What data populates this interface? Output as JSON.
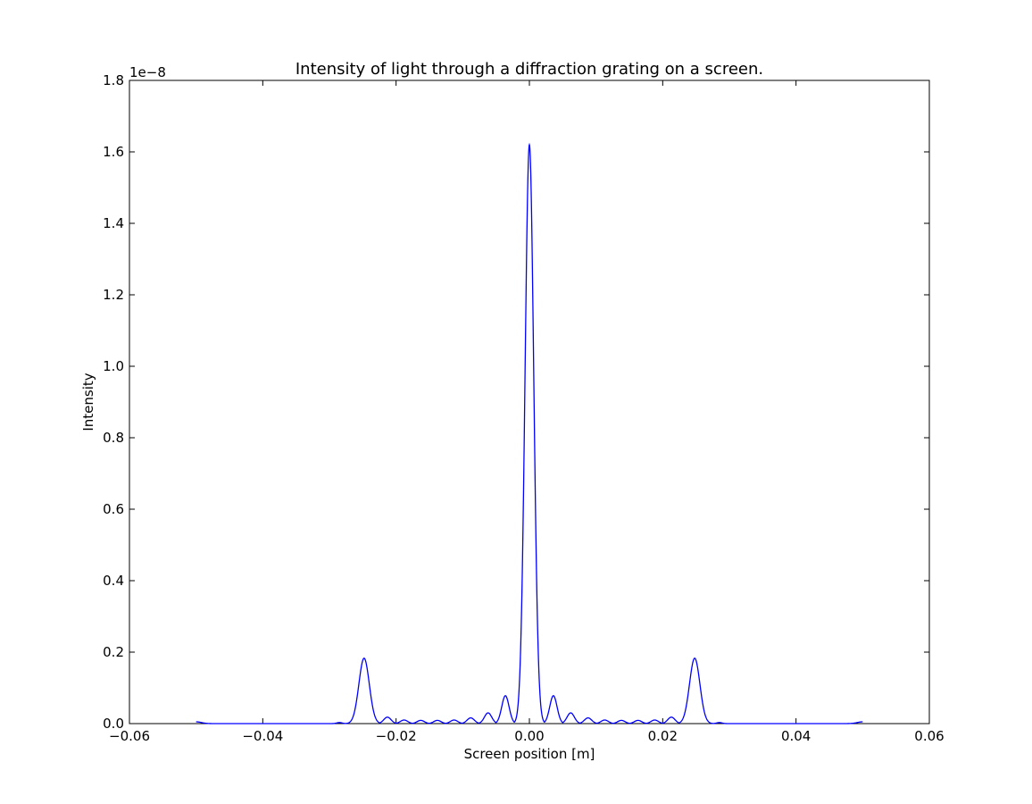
{
  "chart_data": {
    "type": "line",
    "title": "Intensity of light through a diffraction grating on a screen.",
    "xlabel": "Screen position [m]",
    "ylabel": "Intensity",
    "y_offset_label": "1e−8",
    "xlim": [
      -0.06,
      0.06
    ],
    "ylim": [
      0,
      1.8e-08
    ],
    "x_ticks": [
      -0.06,
      -0.04,
      -0.02,
      0.0,
      0.02,
      0.04,
      0.06
    ],
    "x_tick_labels": [
      "−0.06",
      "−0.04",
      "−0.02",
      "0.00",
      "0.02",
      "0.04",
      "0.06"
    ],
    "y_ticks": [
      0.0,
      0.2,
      0.4,
      0.6,
      0.8,
      1.0,
      1.2,
      1.4,
      1.6,
      1.8
    ],
    "y_tick_labels": [
      "0.0",
      "0.2",
      "0.4",
      "0.6",
      "0.8",
      "1.0",
      "1.2",
      "1.4",
      "1.6",
      "1.8"
    ],
    "grid": false,
    "series": [
      {
        "color": "#0000ff",
        "x_range": [
          -0.05,
          0.05
        ],
        "peaks": [
          {
            "x": -0.0248,
            "y": 1.83e-09
          },
          {
            "x": -0.0213,
            "y": 1.8e-10
          },
          {
            "x": -0.0188,
            "y": 1e-10
          },
          {
            "x": -0.0163,
            "y": 9e-11
          },
          {
            "x": -0.0138,
            "y": 9e-11
          },
          {
            "x": -0.0113,
            "y": 1e-10
          },
          {
            "x": -0.0088,
            "y": 1.6e-10
          },
          {
            "x": -0.0062,
            "y": 3e-10
          },
          {
            "x": -0.0036,
            "y": 7.8e-10
          },
          {
            "x": 0.0,
            "y": 1.62e-08
          },
          {
            "x": 0.0036,
            "y": 7.8e-10
          },
          {
            "x": 0.0062,
            "y": 3e-10
          },
          {
            "x": 0.0088,
            "y": 1.6e-10
          },
          {
            "x": 0.0113,
            "y": 1e-10
          },
          {
            "x": 0.0138,
            "y": 9e-11
          },
          {
            "x": 0.0163,
            "y": 9e-11
          },
          {
            "x": 0.0188,
            "y": 1e-10
          },
          {
            "x": 0.0213,
            "y": 1.8e-10
          },
          {
            "x": 0.0248,
            "y": 1.83e-09
          },
          {
            "x": -0.0285,
            "y": 3e-11
          },
          {
            "x": 0.0285,
            "y": 3e-11
          },
          {
            "x": -0.05,
            "y": 5e-11
          },
          {
            "x": 0.05,
            "y": 5e-11
          }
        ]
      }
    ]
  }
}
